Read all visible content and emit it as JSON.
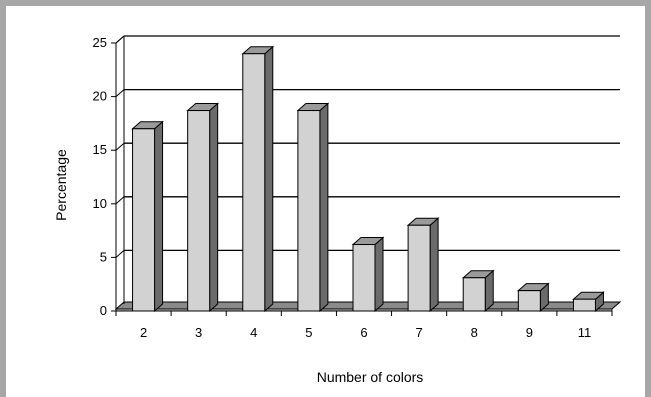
{
  "chart_data": {
    "type": "bar",
    "categories": [
      "2",
      "3",
      "4",
      "5",
      "6",
      "7",
      "8",
      "9",
      "11"
    ],
    "values": [
      17,
      18.7,
      24,
      18.7,
      6.2,
      8,
      3.1,
      1.9,
      1.1
    ],
    "xlabel": "Number of colors",
    "ylabel": "Percentage",
    "ylim": [
      0,
      25
    ],
    "yticks": [
      0,
      5,
      10,
      15,
      20,
      25
    ],
    "grid": true,
    "legend": "none",
    "style": "3d",
    "colors": {
      "bar_front": "#d2d2d2",
      "bar_side": "#6b6b6b",
      "bar_top": "#9a9a9a",
      "floor": "#8a8a8a",
      "frame": "#a7a7a7"
    }
  }
}
